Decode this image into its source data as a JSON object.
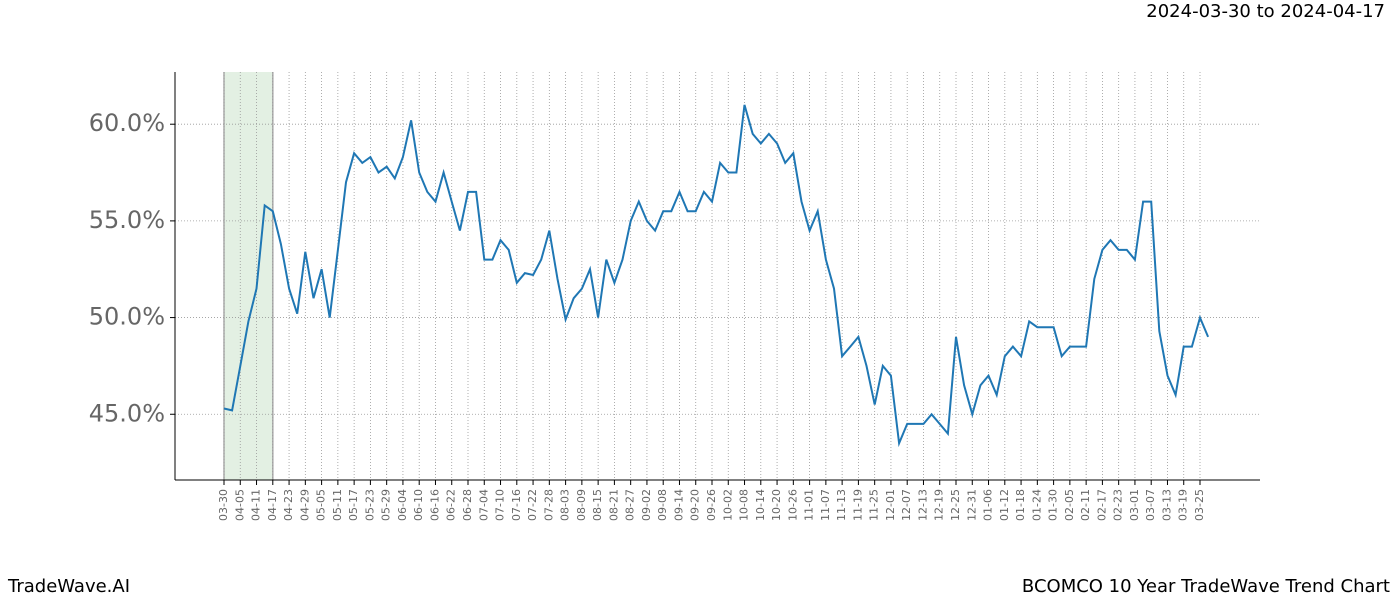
{
  "chart_data": {
    "type": "line",
    "title": "BCOMCO 10 Year TradeWave Trend Chart",
    "date_range": "2024-03-30 to 2024-04-17",
    "brand": "TradeWave.AI",
    "highlight": {
      "from": "03-30",
      "to": "04-17",
      "color": "#e3f0e3"
    },
    "categories": [
      "03-30",
      null,
      "04-05",
      null,
      "04-11",
      null,
      "04-17",
      null,
      "04-23",
      null,
      "04-29",
      null,
      "05-05",
      null,
      "05-11",
      null,
      "05-17",
      null,
      "05-23",
      null,
      "05-29",
      null,
      "06-04",
      null,
      "06-10",
      null,
      "06-16",
      null,
      "06-22",
      null,
      "06-28",
      null,
      "07-04",
      null,
      "07-10",
      null,
      "07-16",
      null,
      "07-22",
      null,
      "07-28",
      null,
      "08-03",
      null,
      "08-09",
      null,
      "08-15",
      null,
      "08-21",
      null,
      "08-27",
      null,
      "09-02",
      null,
      "09-08",
      null,
      "09-14",
      null,
      "09-20",
      null,
      "09-26",
      null,
      "10-02",
      null,
      "10-08",
      null,
      "10-14",
      null,
      "10-20",
      null,
      "10-26",
      null,
      "11-01",
      null,
      "11-07",
      null,
      "11-13",
      null,
      "11-19",
      null,
      "11-25",
      null,
      "12-01",
      null,
      "12-07",
      null,
      "12-13",
      null,
      "12-19",
      null,
      "12-25",
      null,
      "12-31",
      null,
      "01-06",
      null,
      "01-12",
      null,
      "01-18",
      null,
      "01-24",
      null,
      "01-30",
      null,
      "02-05",
      null,
      "02-11",
      null,
      "02-17",
      null,
      "02-23",
      null,
      "03-01",
      null,
      "03-07",
      null,
      "03-13",
      null,
      "03-19",
      null,
      "03-25",
      null
    ],
    "series": [
      {
        "color": "#1f77b4",
        "values": [
          45.3,
          45.2,
          47.5,
          49.8,
          51.5,
          55.8,
          55.5,
          53.8,
          51.5,
          50.2,
          53.4,
          51.0,
          52.5,
          50.0,
          53.5,
          57.0,
          58.5,
          58.0,
          58.3,
          57.5,
          57.8,
          57.2,
          58.3,
          60.2,
          57.5,
          56.5,
          56.0,
          57.5,
          56.0,
          54.5,
          56.5,
          56.5,
          53.0,
          53.0,
          54.0,
          53.5,
          51.8,
          52.3,
          52.2,
          53.0,
          54.5,
          52.0,
          49.9,
          51.0,
          51.5,
          52.5,
          50.0,
          53.0,
          51.8,
          53.0,
          55.0,
          56.0,
          55.0,
          54.5,
          55.5,
          55.5,
          56.5,
          55.5,
          55.5,
          56.5,
          56.0,
          58.0,
          57.5,
          57.5,
          61.0,
          59.5,
          59.0,
          59.5,
          59.0,
          58.0,
          58.5,
          56.0,
          54.5,
          55.5,
          53.0,
          51.5,
          48.0,
          48.5,
          49.0,
          47.5,
          45.5,
          47.5,
          47.0,
          43.5,
          44.5,
          44.5,
          44.5,
          45.0,
          44.5,
          44.0,
          49.0,
          46.5,
          45.0,
          46.5,
          47.0,
          46.0,
          48.0,
          48.5,
          48.0,
          49.8,
          49.5,
          49.5,
          49.5,
          48.0,
          48.5,
          48.5,
          48.5,
          52.0,
          53.5,
          54.0,
          53.5,
          53.5,
          53.0,
          56.0,
          56.0,
          49.3,
          47.0,
          46.0,
          48.5,
          48.5,
          50.0,
          49.0
        ]
      }
    ],
    "ylim": [
      41.6,
      62.7
    ],
    "yticks": [
      {
        "value": 45,
        "label": "45.0%"
      },
      {
        "value": 50,
        "label": "50.0%"
      },
      {
        "value": 55,
        "label": "55.0%"
      },
      {
        "value": 60,
        "label": "60.0%"
      }
    ],
    "grid": true
  }
}
